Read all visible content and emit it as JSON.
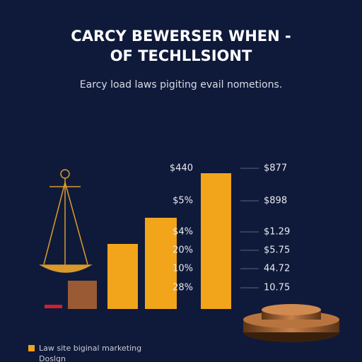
{
  "header": {
    "title_lines": [
      "CARCY BEWERSER WHEN -",
      "OF TECHLLSIONT"
    ],
    "subtitle": "Earcy load laws pigiting evail nometions."
  },
  "left_labels": [
    "$440",
    "$5%",
    "$4%",
    "20%",
    "10%",
    "28%"
  ],
  "right_labels": [
    "$877",
    "$898",
    "$1.29",
    "$5.75",
    "44.72",
    "10.75"
  ],
  "legend": [
    "Law site biginal marketing",
    "Doslgn"
  ]
}
